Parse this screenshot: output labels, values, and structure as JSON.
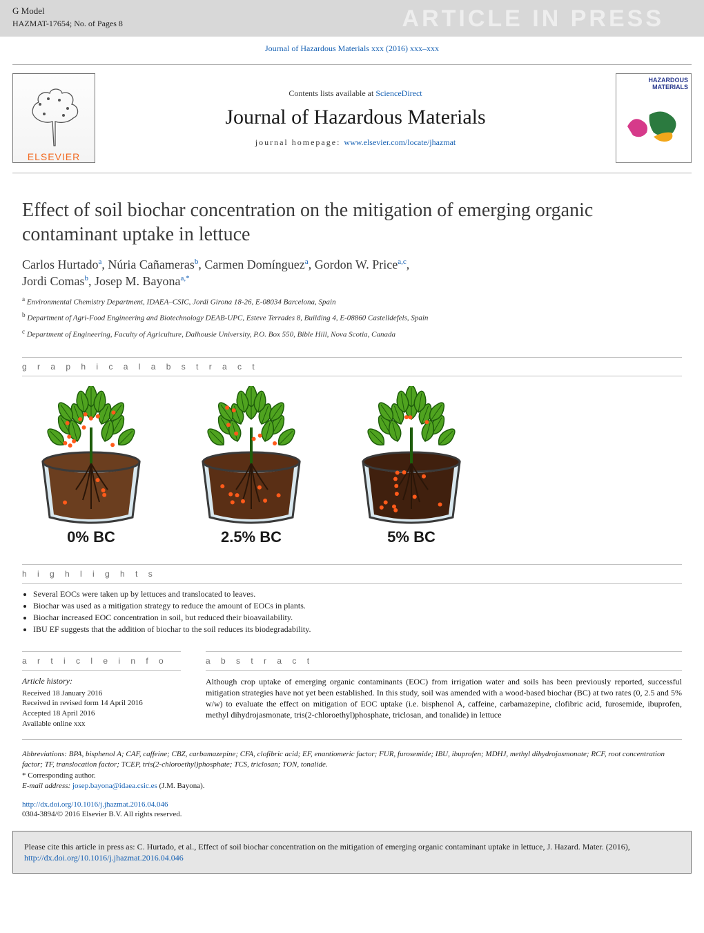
{
  "top_bar": {
    "g_model": "G Model",
    "hazmat_code": "HAZMAT-17654;   No. of Pages 8",
    "article_in_press": "ARTICLE IN PRESS"
  },
  "jrnl_link": "Journal of Hazardous Materials xxx (2016) xxx–xxx",
  "contents": {
    "available_prefix": "Contents lists available at ",
    "available_link": "ScienceDirect",
    "journal_title": "Journal of Hazardous Materials",
    "homepage_label": "journal homepage: ",
    "homepage_url": "www.elsevier.com/locate/jhazmat",
    "elsevier": "ELSEVIER",
    "cover_title": "HAZARDOUS\nMATERIALS"
  },
  "article": {
    "title": "Effect of soil biochar concentration on the mitigation of emerging organic contaminant uptake in lettuce",
    "authors_html": [
      {
        "name": "Carlos Hurtado",
        "sup": "a"
      },
      {
        "name": "Núria Cañameras",
        "sup": "b"
      },
      {
        "name": "Carmen Domínguez",
        "sup": "a"
      },
      {
        "name": "Gordon W. Price",
        "sup": "a,c"
      },
      {
        "name": "Jordi Comas",
        "sup": "b"
      },
      {
        "name": "Josep M. Bayona",
        "sup": "a,*"
      }
    ],
    "affiliations": {
      "a": "Environmental Chemistry Department, IDAEA–CSIC, Jordi Girona 18-26, E-08034 Barcelona, Spain",
      "b": "Department of Agri-Food Engineering and Biotechnology DEAB-UPC, Esteve Terrades 8, Building 4, E-08860 Castelldefels, Spain",
      "c": "Department of Engineering, Faculty of Agriculture, Dalhousie University, P.O. Box 550, Bible Hill, Nova Scotia, Canada"
    }
  },
  "sect_headers": {
    "gabs": "g r a p h i c a l   a b s t r a c t",
    "highlights": "h i g h l i g h t s",
    "artinfo": "a r t i c l e   i n f o",
    "abstract": "a b s t r a c t"
  },
  "graphical_abstract": {
    "pots": [
      {
        "label": "0% BC",
        "biochar_pct": 0,
        "dot_density_leaves": 12,
        "dot_density_soil": 4,
        "soil_color": "#6b3e1f"
      },
      {
        "label": "2.5% BC",
        "biochar_pct": 2.5,
        "dot_density_leaves": 7,
        "dot_density_soil": 8,
        "soil_color": "#5a2f15"
      },
      {
        "label": "5% BC",
        "biochar_pct": 5,
        "dot_density_leaves": 3,
        "dot_density_soil": 12,
        "soil_color": "#40200e"
      }
    ],
    "leaf_color": "#4fa31f",
    "leaf_vein_color": "#1e5d0b",
    "dot_color": "#ff5a1a",
    "pot_fill": "#d9e8ef",
    "pot_stroke": "#3a3a3a",
    "root_color": "#2a1608"
  },
  "highlights": [
    "Several EOCs were taken up by lettuces and translocated to leaves.",
    "Biochar was used as a mitigation strategy to reduce the amount of EOCs in plants.",
    "Biochar increased EOC concentration in soil, but reduced their bioavailability.",
    "IBU EF suggests that the addition of biochar to the soil reduces its biodegradability."
  ],
  "article_info": {
    "header": "Article history:",
    "lines": [
      "Received 18 January 2016",
      "Received in revised form 14 April 2016",
      "Accepted 18 April 2016",
      "Available online xxx"
    ]
  },
  "abstract_text": "Although crop uptake of emerging organic contaminants (EOC) from irrigation water and soils has been previously reported, successful mitigation strategies have not yet been established. In this study, soil was amended with a wood-based biochar (BC) at two rates (0, 2.5 and 5% w/w) to evaluate the effect on mitigation of EOC uptake (i.e. bisphenol A, caffeine, carbamazepine, clofibric acid, furosemide, ibuprofen, methyl dihydrojasmonate, tris(2-chloroethyl)phosphate, triclosan, and tonalide) in lettuce",
  "abbreviations": "Abbreviations:  BPA, bisphenol A; CAF, caffeine; CBZ, carbamazepine; CFA, clofibric acid; EF, enantiomeric factor; FUR, furosemide; IBU, ibuprofen; MDHJ, methyl dihydrojasmonate; RCF, root concentration factor; TF, translocation factor; TCEP, tris(2-chloroethyl)phosphate; TCS, triclosan; TON, tonalide.",
  "corresponding": "* Corresponding author.",
  "email_label": "E-mail address: ",
  "email": "josep.bayona@idaea.csic.es",
  "email_tail": " (J.M. Bayona).",
  "doi_url": "http://dx.doi.org/10.1016/j.jhazmat.2016.04.046",
  "copyright": "0304-3894/© 2016 Elsevier B.V. All rights reserved.",
  "cite_box_prefix": "Please cite this article in press as: C. Hurtado, et al., Effect of soil biochar concentration on the mitigation of emerging organic contaminant uptake in lettuce, J. Hazard. Mater. (2016), ",
  "cite_box_url": "http://dx.doi.org/10.1016/j.jhazmat.2016.04.046"
}
